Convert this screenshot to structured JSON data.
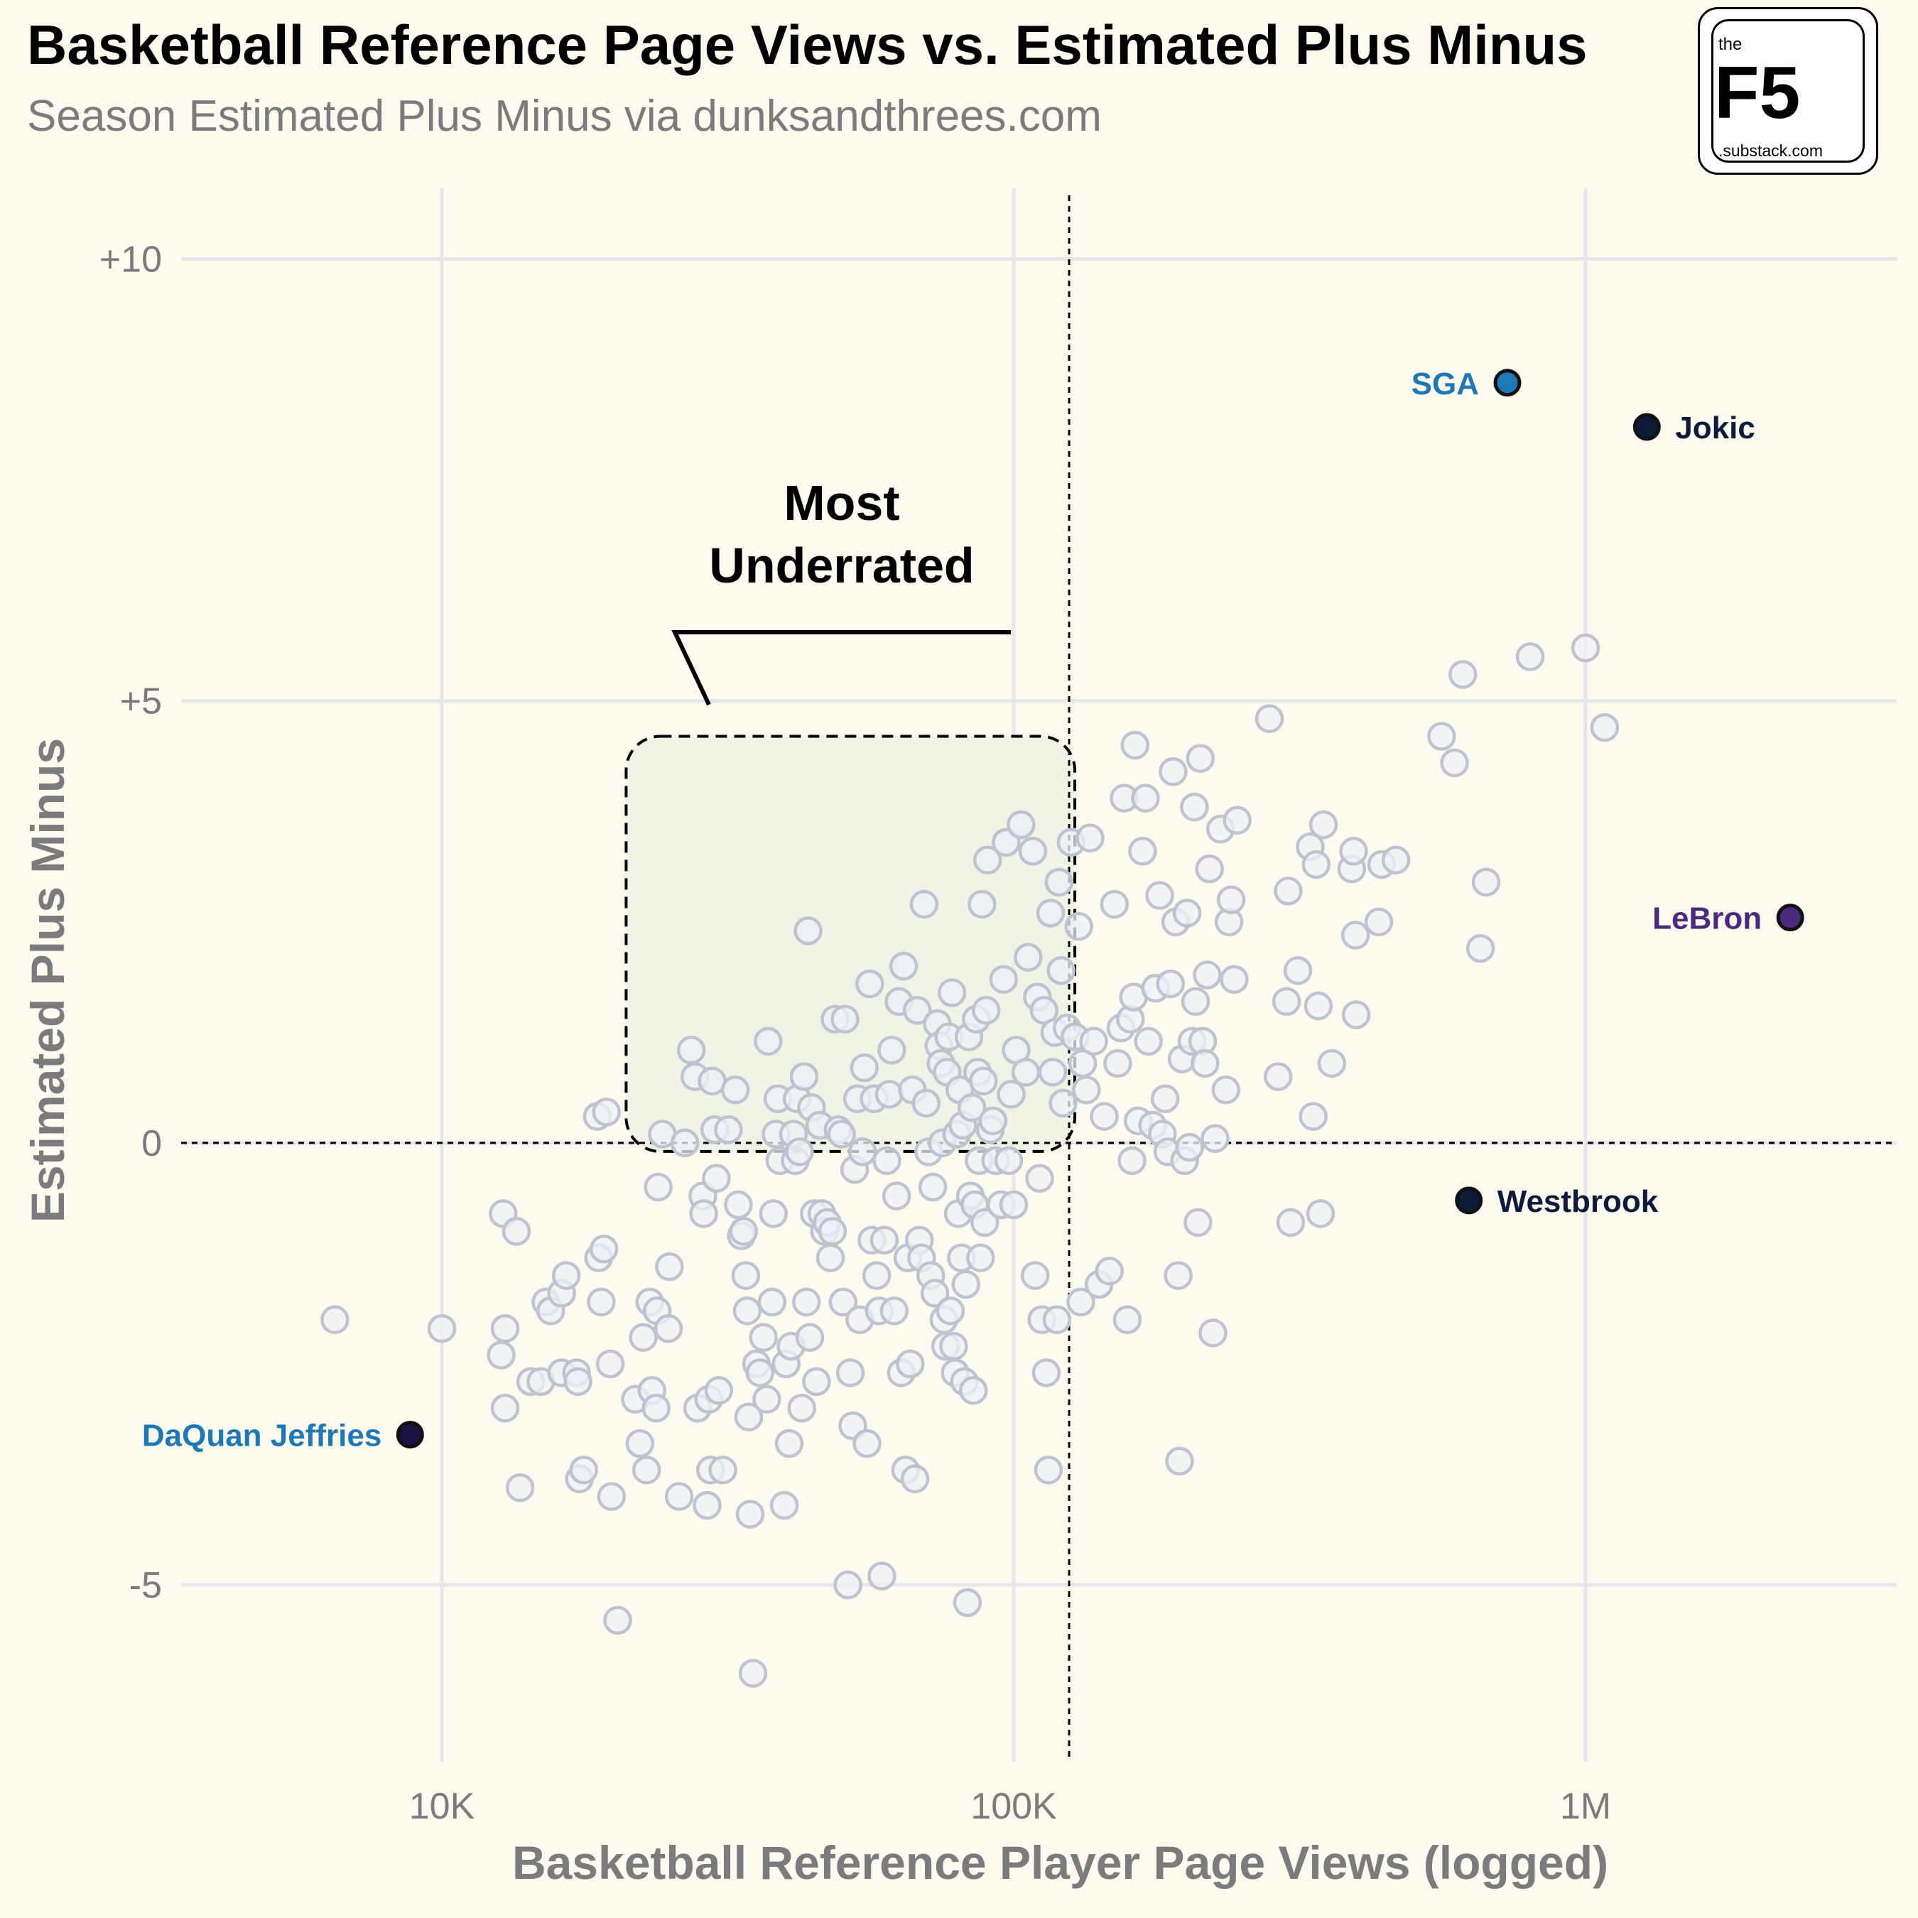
{
  "header": {
    "title": "Basketball Reference Page Views vs. Estimated Plus Minus",
    "subtitle": "Season Estimated Plus Minus via dunksandthrees.com"
  },
  "logo": {
    "the": "the",
    "brand": "F5",
    "domain": ".substack.com"
  },
  "annotation": {
    "line1": "Most",
    "line2": "Underrated"
  },
  "colors": {
    "background": "#fdfaef",
    "point_fill": "#eef0f7",
    "point_stroke": "#bfc2cf",
    "highlight_box": "#eef2e3",
    "label_blue": "#1f77b4",
    "label_navy": "#0d1b3a",
    "label_purple": "#4b2a7b"
  },
  "chart_data": {
    "type": "scatter",
    "xlabel": "Basketball Reference Player Page Views (logged)",
    "ylabel": "Estimated Plus Minus",
    "x_scale": "log",
    "xlim": [
      3500,
      3500000
    ],
    "ylim": [
      -7,
      10.8
    ],
    "x_ticks": [
      {
        "value": 10000,
        "label": "10K"
      },
      {
        "value": 100000,
        "label": "100K"
      },
      {
        "value": 1000000,
        "label": "1M"
      }
    ],
    "y_ticks": [
      {
        "value": 10,
        "label": "+10"
      },
      {
        "value": 5,
        "label": "+5"
      },
      {
        "value": 0,
        "label": "0"
      },
      {
        "value": -5,
        "label": "-5"
      }
    ],
    "grid": true,
    "reference_lines": {
      "x": 125000,
      "y": 0
    },
    "highlight_region": {
      "x": [
        21000,
        125000
      ],
      "y": [
        0,
        4.6
      ]
    },
    "highlighted": [
      {
        "name": "SGA",
        "x": 730000,
        "y": 8.6,
        "fill": "#1f77b4",
        "label_color": "#1f77b4",
        "side": "left"
      },
      {
        "name": "Jokic",
        "x": 1280000,
        "y": 8.1,
        "fill": "#0d1b3a",
        "label_color": "#0d1b3a",
        "side": "right"
      },
      {
        "name": "LeBron",
        "x": 2280000,
        "y": 2.55,
        "fill": "#4b2a7b",
        "label_color": "#4b2a7b",
        "side": "left"
      },
      {
        "name": "Westbrook",
        "x": 625000,
        "y": -0.65,
        "fill": "#0d1b3a",
        "label_color": "#0d1b3a",
        "side": "right"
      },
      {
        "name": "DaQuan Jeffries",
        "x": 8800,
        "y": -3.3,
        "fill": "#1a1446",
        "label_color": "#1f77b4",
        "side": "left"
      }
    ],
    "points": [
      [
        6500,
        -2.0
      ],
      [
        10000,
        -2.1
      ],
      [
        12800,
        -0.8
      ],
      [
        13500,
        -1.0
      ],
      [
        12900,
        -2.1
      ],
      [
        12700,
        -2.4
      ],
      [
        12900,
        -3.0
      ],
      [
        13700,
        -3.9
      ],
      [
        14300,
        -2.7
      ],
      [
        14900,
        -2.7
      ],
      [
        15200,
        -1.8
      ],
      [
        15500,
        -1.9
      ],
      [
        16200,
        -1.7
      ],
      [
        16500,
        -1.5
      ],
      [
        16200,
        -2.6
      ],
      [
        17200,
        -2.6
      ],
      [
        17300,
        -2.7
      ],
      [
        17400,
        -3.8
      ],
      [
        17700,
        -3.7
      ],
      [
        18800,
        -1.3
      ],
      [
        19000,
        -1.8
      ],
      [
        19200,
        -1.2
      ],
      [
        19700,
        -2.5
      ],
      [
        19800,
        -4.0
      ],
      [
        20300,
        -5.4
      ],
      [
        18700,
        0.3
      ],
      [
        19400,
        0.35
      ],
      [
        21800,
        -2.9
      ],
      [
        22200,
        -3.4
      ],
      [
        22500,
        -2.2
      ],
      [
        22800,
        -3.7
      ],
      [
        23100,
        -1.8
      ],
      [
        23300,
        -2.8
      ],
      [
        23700,
        -3.0
      ],
      [
        23800,
        -1.9
      ],
      [
        23900,
        -0.5
      ],
      [
        24300,
        0.1
      ],
      [
        24900,
        -2.1
      ],
      [
        25000,
        -1.4
      ],
      [
        26000,
        -4.0
      ],
      [
        26600,
        -0.0
      ],
      [
        27300,
        1.05
      ],
      [
        27700,
        0.75
      ],
      [
        28000,
        -3.0
      ],
      [
        28600,
        -0.6
      ],
      [
        28700,
        -0.8
      ],
      [
        29100,
        -4.1
      ],
      [
        29300,
        -2.9
      ],
      [
        29500,
        -3.7
      ],
      [
        29700,
        0.7
      ],
      [
        30000,
        0.15
      ],
      [
        30200,
        -0.4
      ],
      [
        30500,
        -2.8
      ],
      [
        31000,
        -3.7
      ],
      [
        31700,
        0.15
      ],
      [
        32600,
        0.6
      ],
      [
        33000,
        -0.7
      ],
      [
        33400,
        -1.05
      ],
      [
        33700,
        -1.0
      ],
      [
        34000,
        -1.5
      ],
      [
        34200,
        -1.9
      ],
      [
        34400,
        -3.1
      ],
      [
        34600,
        -4.2
      ],
      [
        35000,
        -6.0
      ],
      [
        35500,
        -2.5
      ],
      [
        36000,
        -2.6
      ],
      [
        36500,
        -2.2
      ],
      [
        37000,
        -2.9
      ],
      [
        37200,
        1.15
      ],
      [
        37800,
        -1.8
      ],
      [
        38000,
        -0.8
      ],
      [
        38400,
        0.1
      ],
      [
        38700,
        0.5
      ],
      [
        39000,
        -0.2
      ],
      [
        39700,
        -4.1
      ],
      [
        40000,
        -2.5
      ],
      [
        40500,
        -3.4
      ],
      [
        40800,
        -2.3
      ],
      [
        41200,
        0.1
      ],
      [
        41500,
        -0.2
      ],
      [
        41800,
        0.5
      ],
      [
        42200,
        -0.1
      ],
      [
        42600,
        -3.0
      ],
      [
        43000,
        0.75
      ],
      [
        43400,
        -1.8
      ],
      [
        43700,
        2.4
      ],
      [
        44000,
        -2.2
      ],
      [
        44300,
        0.4
      ],
      [
        44800,
        -0.8
      ],
      [
        45200,
        -2.7
      ],
      [
        45800,
        0.2
      ],
      [
        46200,
        -0.8
      ],
      [
        46700,
        -1.0
      ],
      [
        47200,
        -0.9
      ],
      [
        47800,
        -1.3
      ],
      [
        48200,
        -1.0
      ],
      [
        48700,
        1.4
      ],
      [
        49300,
        0.15
      ],
      [
        50000,
        0.1
      ],
      [
        50300,
        -1.8
      ],
      [
        50700,
        1.4
      ],
      [
        51300,
        -5.0
      ],
      [
        51800,
        -2.6
      ],
      [
        52300,
        -3.2
      ],
      [
        52700,
        -0.3
      ],
      [
        53300,
        0.5
      ],
      [
        53800,
        -2.0
      ],
      [
        54400,
        -0.1
      ],
      [
        54800,
        0.85
      ],
      [
        55400,
        -3.4
      ],
      [
        56000,
        1.8
      ],
      [
        56500,
        -1.1
      ],
      [
        57000,
        0.5
      ],
      [
        57600,
        -1.5
      ],
      [
        58200,
        -1.9
      ],
      [
        58800,
        -4.9
      ],
      [
        59400,
        -1.1
      ],
      [
        60000,
        -0.2
      ],
      [
        60600,
        0.55
      ],
      [
        61200,
        1.05
      ],
      [
        61800,
        -1.9
      ],
      [
        62400,
        -0.6
      ],
      [
        63000,
        1.6
      ],
      [
        63600,
        -2.6
      ],
      [
        64200,
        2.0
      ],
      [
        64700,
        -3.7
      ],
      [
        65300,
        -1.3
      ],
      [
        65900,
        -2.5
      ],
      [
        66500,
        0.6
      ],
      [
        67200,
        -3.8
      ],
      [
        67800,
        1.5
      ],
      [
        68400,
        -1.1
      ],
      [
        69000,
        -1.3
      ],
      [
        69700,
        2.7
      ],
      [
        70300,
        0.45
      ],
      [
        71000,
        -0.1
      ],
      [
        71600,
        -1.5
      ],
      [
        72200,
        -0.5
      ],
      [
        72800,
        -1.7
      ],
      [
        73500,
        1.35
      ],
      [
        74000,
        1.1
      ],
      [
        74600,
        0.9
      ],
      [
        75000,
        0.0
      ],
      [
        75500,
        -2.0
      ],
      [
        76000,
        -2.3
      ],
      [
        76500,
        0.8
      ],
      [
        77000,
        1.2
      ],
      [
        77500,
        -1.9
      ],
      [
        78000,
        1.7
      ],
      [
        78500,
        -2.3
      ],
      [
        79000,
        -2.6
      ],
      [
        79500,
        0.1
      ],
      [
        80000,
        -0.8
      ],
      [
        80500,
        0.6
      ],
      [
        81000,
        -1.3
      ],
      [
        81500,
        0.2
      ],
      [
        82000,
        -2.7
      ],
      [
        82500,
        -1.6
      ],
      [
        83000,
        -5.2
      ],
      [
        83500,
        1.2
      ],
      [
        84000,
        -0.6
      ],
      [
        84500,
        0.4
      ],
      [
        85000,
        -2.8
      ],
      [
        85500,
        -0.7
      ],
      [
        86000,
        1.4
      ],
      [
        86500,
        0.8
      ],
      [
        87000,
        -0.2
      ],
      [
        87500,
        -1.3
      ],
      [
        88000,
        2.7
      ],
      [
        88500,
        0.7
      ],
      [
        89000,
        -0.9
      ],
      [
        89500,
        1.5
      ],
      [
        90000,
        3.2
      ],
      [
        91000,
        0.15
      ],
      [
        92000,
        0.25
      ],
      [
        93000,
        -0.2
      ],
      [
        95000,
        -0.7
      ],
      [
        96000,
        1.85
      ],
      [
        97000,
        3.4
      ],
      [
        98000,
        -0.2
      ],
      [
        99000,
        0.55
      ],
      [
        100000,
        -0.7
      ],
      [
        101000,
        1.05
      ],
      [
        103000,
        3.6
      ],
      [
        105000,
        0.8
      ],
      [
        106000,
        2.1
      ],
      [
        108000,
        3.3
      ],
      [
        109000,
        -1.5
      ],
      [
        110000,
        1.65
      ],
      [
        111000,
        -0.4
      ],
      [
        112000,
        -2.0
      ],
      [
        113000,
        1.5
      ],
      [
        114000,
        -2.6
      ],
      [
        115000,
        -3.7
      ],
      [
        116000,
        2.6
      ],
      [
        117000,
        0.8
      ],
      [
        118000,
        1.25
      ],
      [
        119000,
        -2.0
      ],
      [
        120000,
        2.95
      ],
      [
        121000,
        1.95
      ],
      [
        122000,
        0.45
      ],
      [
        124000,
        1.3
      ],
      [
        126000,
        3.4
      ],
      [
        128000,
        1.2
      ],
      [
        130000,
        2.45
      ],
      [
        131000,
        -1.8
      ],
      [
        132000,
        0.9
      ],
      [
        134000,
        0.6
      ],
      [
        136000,
        3.45
      ],
      [
        138000,
        1.15
      ],
      [
        141000,
        -1.6
      ],
      [
        144000,
        0.3
      ],
      [
        147000,
        -1.45
      ],
      [
        150000,
        2.7
      ],
      [
        152000,
        0.9
      ],
      [
        154000,
        1.3
      ],
      [
        156000,
        3.9
      ],
      [
        158000,
        -2.0
      ],
      [
        160000,
        1.4
      ],
      [
        161000,
        -0.2
      ],
      [
        162000,
        1.65
      ],
      [
        163000,
        4.5
      ],
      [
        165000,
        0.25
      ],
      [
        168000,
        3.3
      ],
      [
        170000,
        3.9
      ],
      [
        172000,
        1.15
      ],
      [
        175000,
        0.2
      ],
      [
        177000,
        1.75
      ],
      [
        180000,
        2.8
      ],
      [
        182000,
        0.1
      ],
      [
        184000,
        0.5
      ],
      [
        186000,
        -0.1
      ],
      [
        188000,
        1.8
      ],
      [
        190000,
        4.2
      ],
      [
        192000,
        2.5
      ],
      [
        194000,
        -1.5
      ],
      [
        195000,
        -3.6
      ],
      [
        197000,
        0.95
      ],
      [
        199000,
        -0.2
      ],
      [
        201000,
        2.6
      ],
      [
        203000,
        -0.05
      ],
      [
        205000,
        1.15
      ],
      [
        207000,
        3.8
      ],
      [
        208000,
        1.6
      ],
      [
        210000,
        -0.9
      ],
      [
        212000,
        4.35
      ],
      [
        214000,
        1.15
      ],
      [
        216000,
        0.9
      ],
      [
        218000,
        1.9
      ],
      [
        220000,
        3.1
      ],
      [
        223000,
        -2.15
      ],
      [
        225000,
        0.05
      ],
      [
        230000,
        3.55
      ],
      [
        235000,
        0.6
      ],
      [
        238000,
        2.5
      ],
      [
        240000,
        2.75
      ],
      [
        243000,
        1.85
      ],
      [
        246000,
        3.65
      ],
      [
        280000,
        4.8
      ],
      [
        290000,
        0.75
      ],
      [
        300000,
        1.6
      ],
      [
        302000,
        2.85
      ],
      [
        305000,
        -0.9
      ],
      [
        314000,
        1.95
      ],
      [
        330000,
        3.35
      ],
      [
        334000,
        0.3
      ],
      [
        338000,
        3.15
      ],
      [
        341000,
        1.55
      ],
      [
        344000,
        -0.8
      ],
      [
        348000,
        3.6
      ],
      [
        360000,
        0.9
      ],
      [
        390000,
        3.1
      ],
      [
        393000,
        3.3
      ],
      [
        396000,
        2.35
      ],
      [
        397000,
        1.45
      ],
      [
        435000,
        2.5
      ],
      [
        440000,
        3.15
      ],
      [
        466000,
        3.2
      ],
      [
        560000,
        4.6
      ],
      [
        590000,
        4.3
      ],
      [
        610000,
        5.3
      ],
      [
        655000,
        2.2
      ],
      [
        670000,
        2.95
      ],
      [
        800000,
        5.5
      ],
      [
        1000000,
        5.6
      ],
      [
        1080000,
        4.7
      ]
    ]
  }
}
